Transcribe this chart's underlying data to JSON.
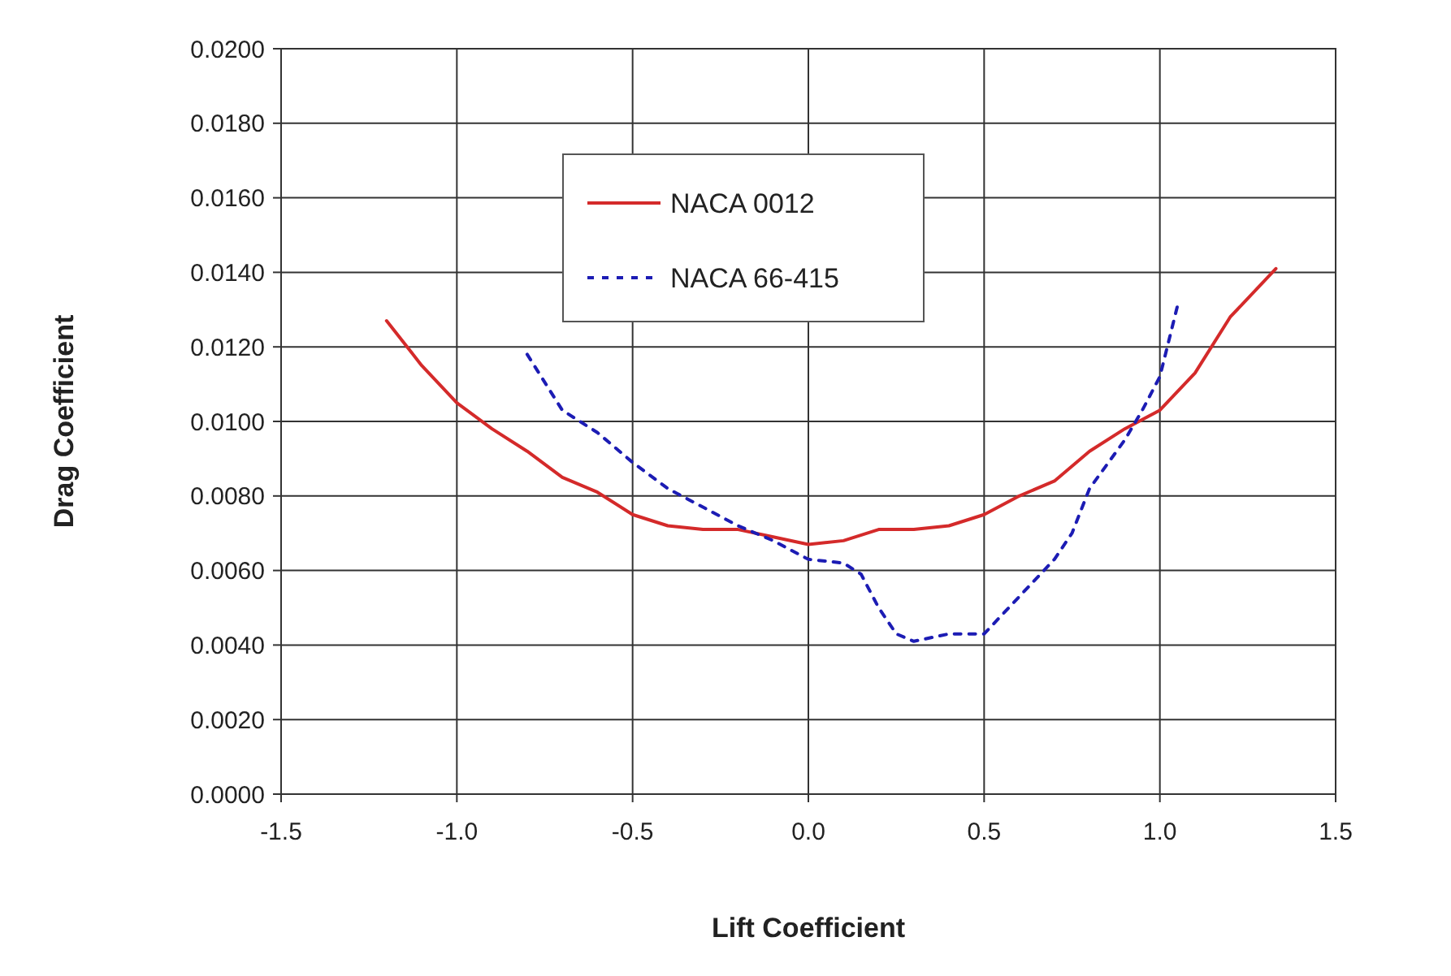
{
  "chart_data": {
    "type": "line",
    "xlabel": "Lift Coefficient",
    "ylabel": "Drag Coefficient",
    "xlim": [
      -1.5,
      1.5
    ],
    "ylim": [
      0,
      0.02
    ],
    "xticks": [
      {
        "value": -1.5,
        "label": "-1.5"
      },
      {
        "value": -1,
        "label": "-1.0"
      },
      {
        "value": -0.5,
        "label": "-0.5"
      },
      {
        "value": 0,
        "label": "0.0"
      },
      {
        "value": 0.5,
        "label": "0.5"
      },
      {
        "value": 1,
        "label": "1.0"
      },
      {
        "value": 1.5,
        "label": "1.5"
      }
    ],
    "yticks": [
      {
        "value": 0,
        "label": "0.0000"
      },
      {
        "value": 0.002,
        "label": "0.0020"
      },
      {
        "value": 0.004,
        "label": "0.0040"
      },
      {
        "value": 0.006,
        "label": "0.0060"
      },
      {
        "value": 0.008,
        "label": "0.0080"
      },
      {
        "value": 0.01,
        "label": "0.0100"
      },
      {
        "value": 0.012,
        "label": "0.0120"
      },
      {
        "value": 0.014,
        "label": "0.0140"
      },
      {
        "value": 0.016,
        "label": "0.0160"
      },
      {
        "value": 0.018,
        "label": "0.0180"
      },
      {
        "value": 0.02,
        "label": "0.0200"
      }
    ],
    "grid": true,
    "legend": "top",
    "marker": "none",
    "series": [
      {
        "name": "NACA 0012",
        "color": "#d42a2a",
        "line_style": "solid",
        "x": [
          -1.2,
          -1.1,
          -1.0,
          -0.9,
          -0.8,
          -0.7,
          -0.6,
          -0.5,
          -0.4,
          -0.3,
          -0.2,
          -0.1,
          0.0,
          0.1,
          0.2,
          0.3,
          0.4,
          0.5,
          0.6,
          0.7,
          0.8,
          0.9,
          1.0,
          1.1,
          1.2,
          1.33
        ],
        "values": [
          0.0127,
          0.0115,
          0.0105,
          0.0098,
          0.0092,
          0.0085,
          0.0081,
          0.0075,
          0.0072,
          0.0071,
          0.0071,
          0.0069,
          0.0067,
          0.0068,
          0.0071,
          0.0071,
          0.0072,
          0.0075,
          0.008,
          0.0084,
          0.0092,
          0.0098,
          0.0103,
          0.0113,
          0.0128,
          0.0141
        ]
      },
      {
        "name": "NACA 66-415",
        "color": "#1c1cb4",
        "line_style": "dashed",
        "x": [
          -0.8,
          -0.7,
          -0.6,
          -0.5,
          -0.4,
          -0.3,
          -0.2,
          -0.1,
          0.0,
          0.1,
          0.15,
          0.2,
          0.25,
          0.3,
          0.4,
          0.5,
          0.6,
          0.7,
          0.75,
          0.8,
          0.9,
          0.95,
          1.0,
          1.05
        ],
        "values": [
          0.0118,
          0.0103,
          0.0097,
          0.0089,
          0.0082,
          0.0077,
          0.0072,
          0.0068,
          0.0063,
          0.0062,
          0.0059,
          0.005,
          0.0043,
          0.0041,
          0.0043,
          0.0043,
          0.0053,
          0.0063,
          0.007,
          0.0082,
          0.0095,
          0.0103,
          0.0112,
          0.0131
        ]
      }
    ]
  }
}
